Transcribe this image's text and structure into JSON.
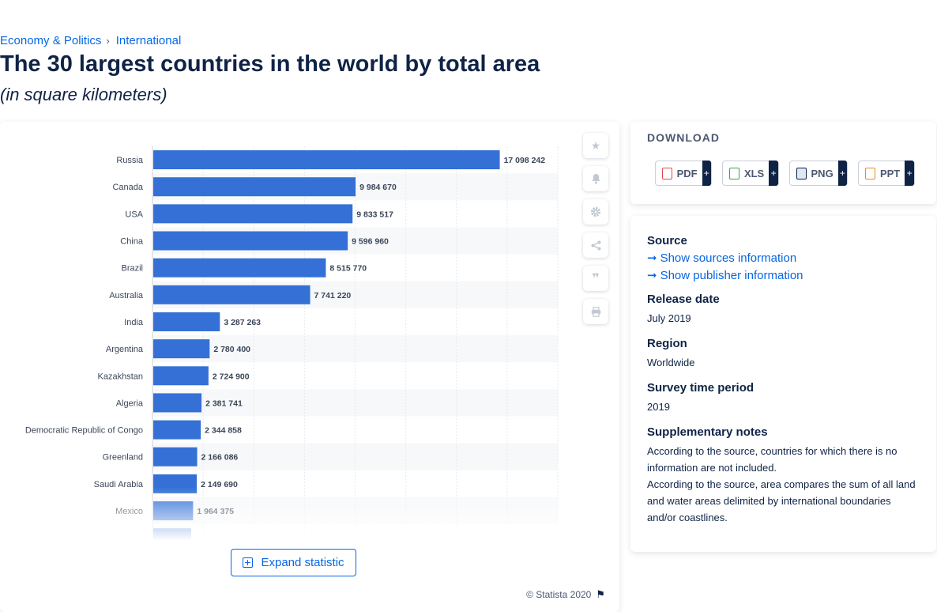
{
  "breadcrumb": {
    "items": [
      "Economy & Politics",
      "International"
    ]
  },
  "title": "The 30 largest countries in the world by total area",
  "subtitle": "(in square kilometers)",
  "chart_data": {
    "type": "bar",
    "orientation": "horizontal",
    "categories": [
      "Russia",
      "Canada",
      "USA",
      "China",
      "Brazil",
      "Australia",
      "India",
      "Argentina",
      "Kazakhstan",
      "Algeria",
      "Democratic Republic of Congo",
      "Greenland",
      "Saudi Arabia",
      "Mexico"
    ],
    "values": [
      17098242,
      9984670,
      9833517,
      9596960,
      8515770,
      7741220,
      3287263,
      2780400,
      2724900,
      2381741,
      2344858,
      2166086,
      2149690,
      1964375
    ],
    "value_labels": [
      "17 098 242",
      "9 984 670",
      "9 833 517",
      "9 596 960",
      "8 515 770",
      "7 741 220",
      "3 287 263",
      "2 780 400",
      "2 724 900",
      "2 381 741",
      "2 344 858",
      "2 166 086",
      "2 149 690",
      "1 964 375"
    ],
    "xlim": [
      0,
      20000000
    ],
    "grid": true,
    "bar_color": "#3470d6",
    "note": "chart is truncated; remaining countries hidden behind fade"
  },
  "tools": {
    "icons": [
      "star-icon",
      "bell-icon",
      "gear-icon",
      "share-icon",
      "quote-icon",
      "print-icon"
    ]
  },
  "expand_label": "Expand statistic",
  "copyright": "© Statista 2020",
  "download": {
    "title": "DOWNLOAD",
    "buttons": [
      {
        "label": "PDF",
        "plus": "+"
      },
      {
        "label": "XLS",
        "plus": "+"
      },
      {
        "label": "PNG",
        "plus": "+"
      },
      {
        "label": "PPT",
        "plus": "+"
      }
    ]
  },
  "info": {
    "source_heading": "Source",
    "source_link": "Show sources information",
    "publisher_link": "Show publisher information",
    "release_heading": "Release date",
    "release_value": "July 2019",
    "region_heading": "Region",
    "region_value": "Worldwide",
    "survey_heading": "Survey time period",
    "survey_value": "2019",
    "notes_heading": "Supplementary notes",
    "notes_1": "According to the source, countries for which there is no information are not included.",
    "notes_2": "According to the source, area compares the sum of all land and water areas delimited by international boundaries and/or coastlines."
  }
}
